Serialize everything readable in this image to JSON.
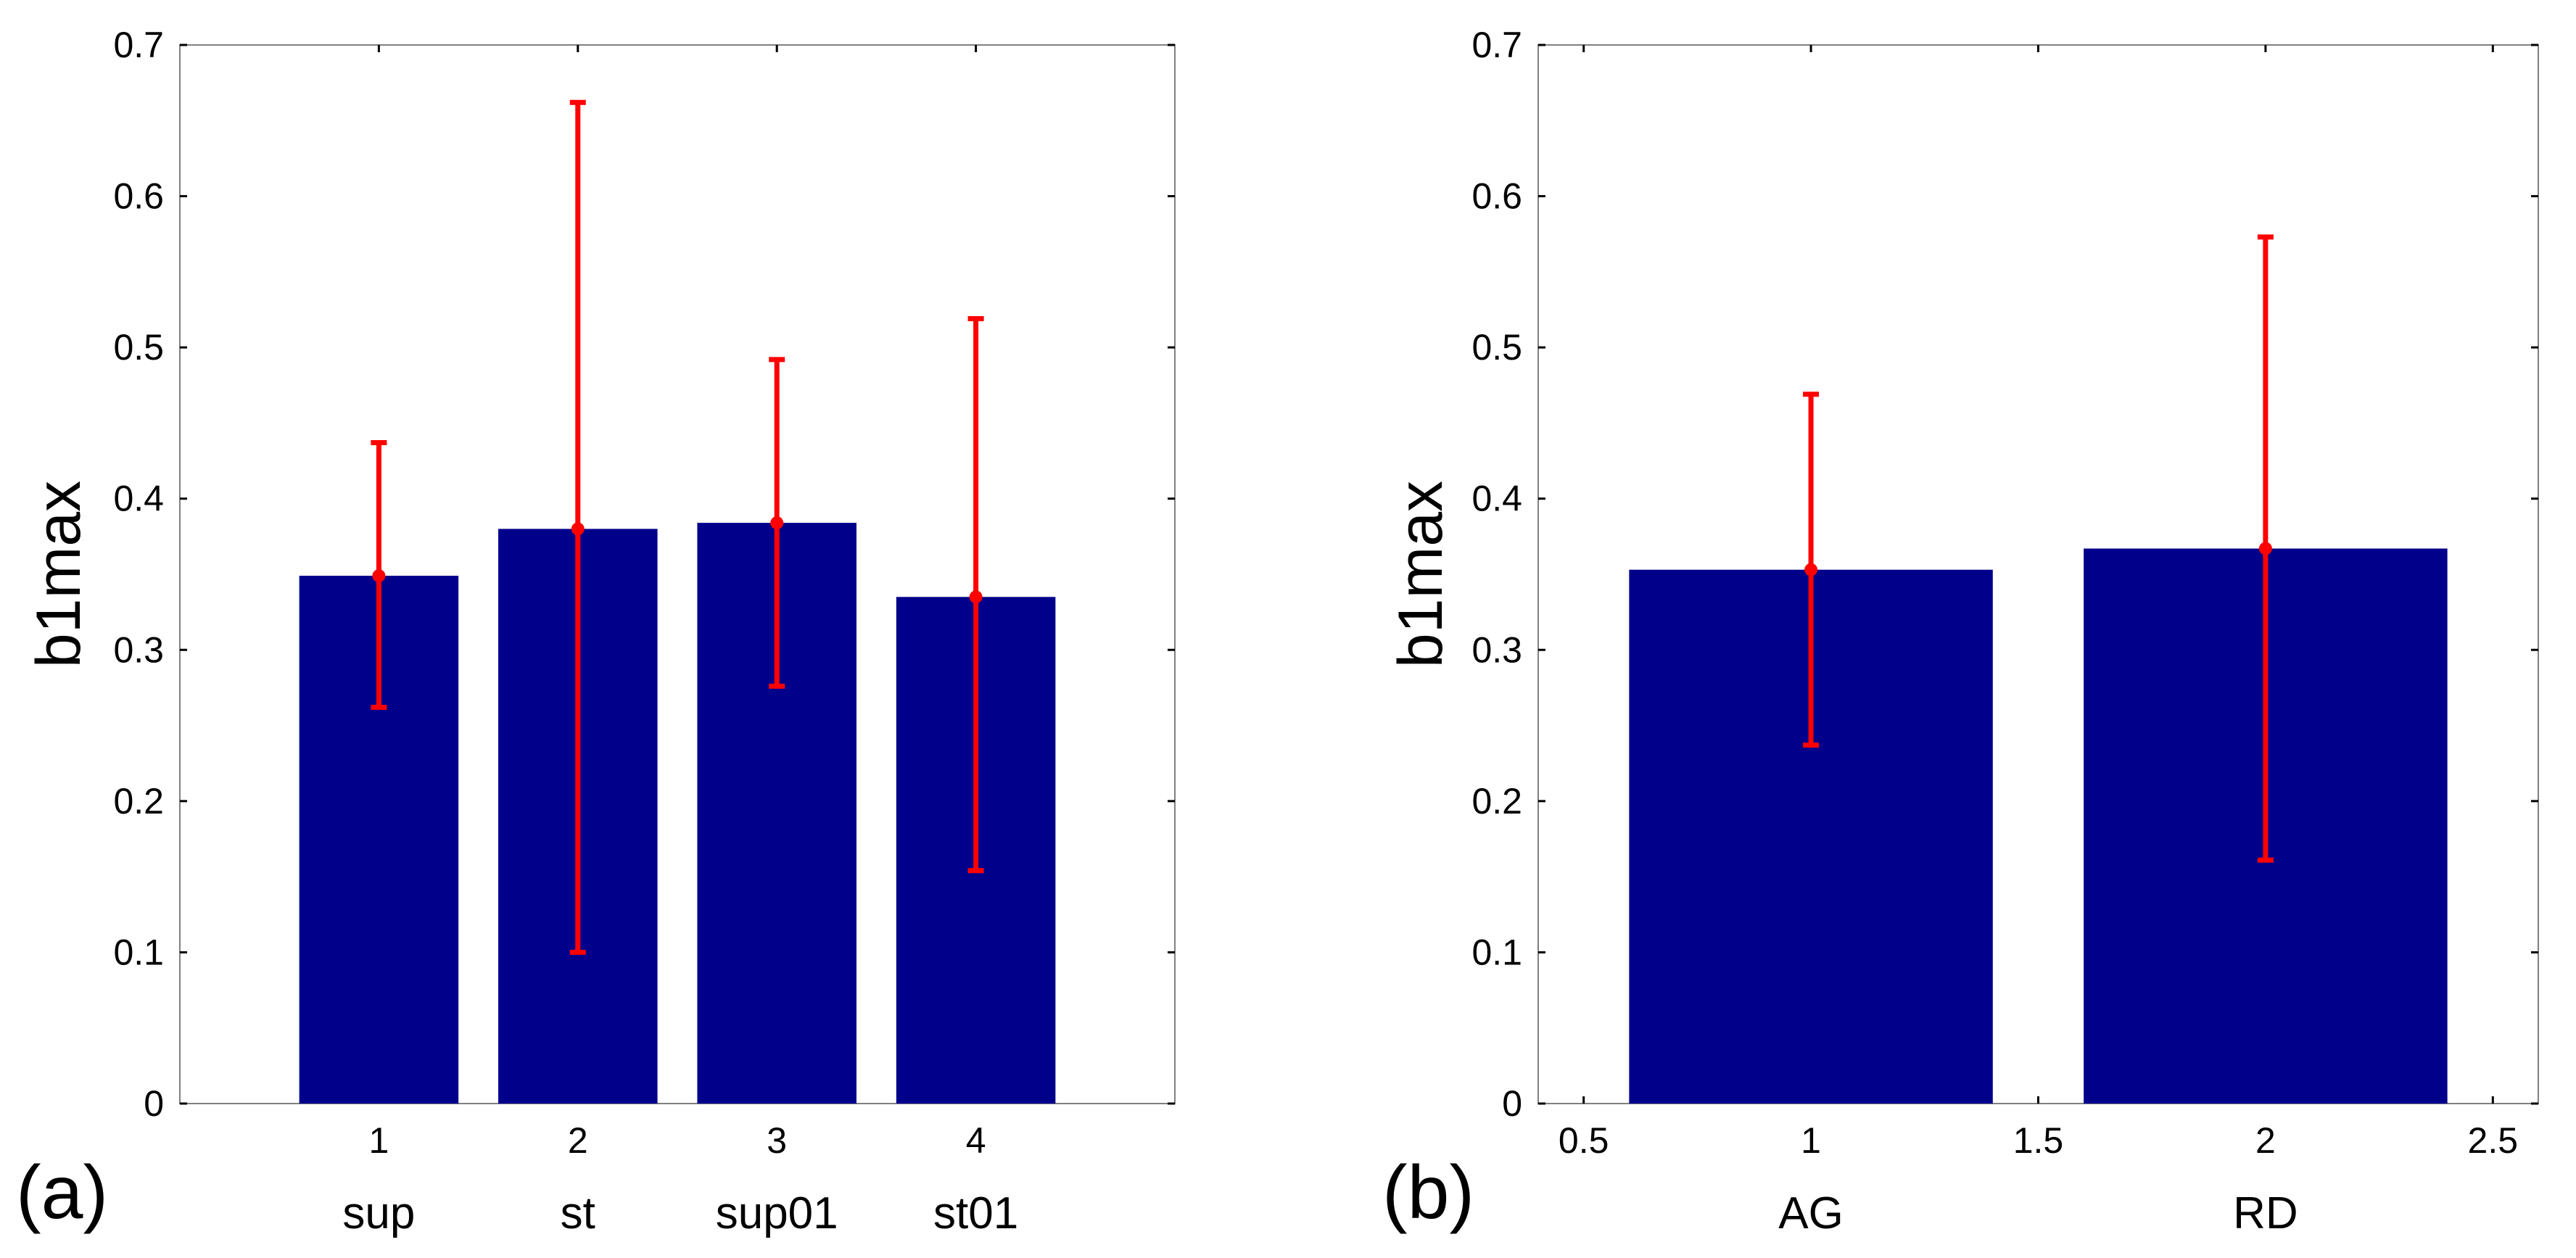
{
  "colors": {
    "bar": "#00008B",
    "error": "#FF0000",
    "axis": "#808080",
    "text": "#000000"
  },
  "chart_data": [
    {
      "type": "bar",
      "panel_label": "(a)",
      "ylabel": "b1max",
      "ylim": [
        0,
        0.7
      ],
      "xlim": [
        0,
        5
      ],
      "y_ticks": [
        0,
        0.1,
        0.2,
        0.3,
        0.4,
        0.5,
        0.6,
        0.7
      ],
      "y_tick_labels": [
        "0",
        "0.1",
        "0.2",
        "0.3",
        "0.4",
        "0.5",
        "0.6",
        "0.7"
      ],
      "x": [
        1,
        2,
        3,
        4
      ],
      "x_tick_labels": [
        "1",
        "2",
        "3",
        "4"
      ],
      "categories": [
        "sup",
        "st",
        "sup01",
        "st01"
      ],
      "values": [
        0.349,
        0.38,
        0.384,
        0.335
      ],
      "error_center": [
        0.349,
        0.38,
        0.384,
        0.335
      ],
      "error_lower": [
        0.262,
        0.1,
        0.276,
        0.154
      ],
      "error_upper": [
        0.437,
        0.662,
        0.492,
        0.519
      ],
      "bar_width": 0.8
    },
    {
      "type": "bar",
      "panel_label": "(b)",
      "ylabel": "b1max",
      "ylim": [
        0,
        0.7
      ],
      "xlim": [
        0.4,
        2.6
      ],
      "y_ticks": [
        0,
        0.1,
        0.2,
        0.3,
        0.4,
        0.5,
        0.6,
        0.7
      ],
      "y_tick_labels": [
        "0",
        "0.1",
        "0.2",
        "0.3",
        "0.4",
        "0.5",
        "0.6",
        "0.7"
      ],
      "x": [
        1,
        2
      ],
      "x_ticks": [
        0.5,
        1,
        1.5,
        2,
        2.5
      ],
      "x_tick_labels": [
        "0.5",
        "1",
        "1.5",
        "2",
        "2.5"
      ],
      "categories": [
        "AG",
        "RD"
      ],
      "values": [
        0.353,
        0.367
      ],
      "error_center": [
        0.353,
        0.367
      ],
      "error_lower": [
        0.237,
        0.161
      ],
      "error_upper": [
        0.469,
        0.573
      ],
      "bar_width": 0.8
    }
  ]
}
